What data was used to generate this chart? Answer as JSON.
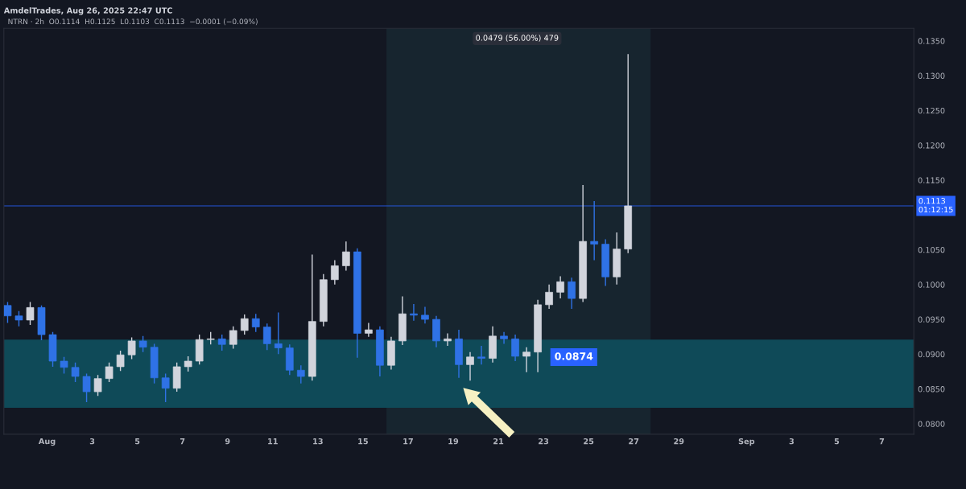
{
  "chart_data": {
    "type": "candlestick",
    "title": "AmdelTrades, Aug 26, 2025 22:47 UTC",
    "subtitle": "NTRN · 2h  O0.1114  H0.1125  L0.1103  C0.1113  −0.0001 (−0.09%)",
    "x": [
      "2025-07-30T06:00",
      "2025-07-30T18:00",
      "2025-07-31T06:00",
      "2025-07-31T18:00",
      "2025-08-01T06:00",
      "2025-08-01T18:00",
      "2025-08-02T06:00",
      "2025-08-02T18:00",
      "2025-08-03T06:00",
      "2025-08-03T18:00",
      "2025-08-04T06:00",
      "2025-08-04T18:00",
      "2025-08-05T06:00",
      "2025-08-05T18:00",
      "2025-08-06T06:00",
      "2025-08-06T18:00",
      "2025-08-07T06:00",
      "2025-08-07T18:00",
      "2025-08-08T06:00",
      "2025-08-08T18:00",
      "2025-08-09T06:00",
      "2025-08-09T18:00",
      "2025-08-10T06:00",
      "2025-08-10T18:00",
      "2025-08-11T06:00",
      "2025-08-11T18:00",
      "2025-08-12T06:00",
      "2025-08-12T18:00",
      "2025-08-13T06:00",
      "2025-08-13T18:00",
      "2025-08-14T06:00",
      "2025-08-14T18:00",
      "2025-08-15T06:00",
      "2025-08-15T18:00",
      "2025-08-16T06:00",
      "2025-08-16T18:00",
      "2025-08-17T06:00",
      "2025-08-17T18:00",
      "2025-08-18T06:00",
      "2025-08-18T18:00",
      "2025-08-19T06:00",
      "2025-08-19T18:00",
      "2025-08-20T06:00",
      "2025-08-20T18:00",
      "2025-08-21T06:00",
      "2025-08-21T18:00",
      "2025-08-22T06:00",
      "2025-08-22T18:00",
      "2025-08-23T06:00",
      "2025-08-23T18:00",
      "2025-08-24T06:00",
      "2025-08-24T18:00",
      "2025-08-25T06:00",
      "2025-08-25T18:00",
      "2025-08-26T06:00",
      "2025-08-26T18:00"
    ],
    "ohlc": [
      [
        0.097,
        0.0975,
        0.0945,
        0.0955
      ],
      [
        0.0955,
        0.0962,
        0.094,
        0.0949
      ],
      [
        0.0949,
        0.0975,
        0.0942,
        0.0967
      ],
      [
        0.0967,
        0.097,
        0.092,
        0.0928
      ],
      [
        0.0928,
        0.0932,
        0.0882,
        0.089
      ],
      [
        0.089,
        0.0896,
        0.0872,
        0.0881
      ],
      [
        0.0881,
        0.0888,
        0.086,
        0.0868
      ],
      [
        0.0868,
        0.0872,
        0.0831,
        0.0846
      ],
      [
        0.0846,
        0.087,
        0.084,
        0.0865
      ],
      [
        0.0865,
        0.0888,
        0.086,
        0.0882
      ],
      [
        0.0882,
        0.0905,
        0.0876,
        0.0899
      ],
      [
        0.0899,
        0.0924,
        0.0893,
        0.0919
      ],
      [
        0.0919,
        0.0926,
        0.0903,
        0.091
      ],
      [
        0.091,
        0.0915,
        0.0858,
        0.0866
      ],
      [
        0.0866,
        0.0872,
        0.0831,
        0.0851
      ],
      [
        0.0851,
        0.0888,
        0.0846,
        0.0882
      ],
      [
        0.0882,
        0.0897,
        0.0875,
        0.089
      ],
      [
        0.089,
        0.0928,
        0.0885,
        0.0921
      ],
      [
        0.0921,
        0.0932,
        0.0914,
        0.0922
      ],
      [
        0.0922,
        0.0928,
        0.0905,
        0.0914
      ],
      [
        0.0914,
        0.094,
        0.0908,
        0.0934
      ],
      [
        0.0934,
        0.0957,
        0.0928,
        0.0951
      ],
      [
        0.0951,
        0.0958,
        0.0932,
        0.0939
      ],
      [
        0.0939,
        0.0944,
        0.0906,
        0.0915
      ],
      [
        0.0915,
        0.096,
        0.09,
        0.0909
      ],
      [
        0.0909,
        0.0914,
        0.087,
        0.0877
      ],
      [
        0.0877,
        0.0884,
        0.0858,
        0.0868
      ],
      [
        0.0868,
        0.1043,
        0.0862,
        0.0947
      ],
      [
        0.0947,
        0.1015,
        0.094,
        0.1007
      ],
      [
        0.1007,
        0.1035,
        0.1,
        0.1027
      ],
      [
        0.1027,
        0.1062,
        0.102,
        0.1047
      ],
      [
        0.1047,
        0.1052,
        0.0895,
        0.093
      ],
      [
        0.093,
        0.0945,
        0.0925,
        0.0935
      ],
      [
        0.0935,
        0.094,
        0.0868,
        0.0884
      ],
      [
        0.0884,
        0.0925,
        0.0878,
        0.0919
      ],
      [
        0.0919,
        0.0983,
        0.0913,
        0.0958
      ],
      [
        0.0958,
        0.0972,
        0.0948,
        0.0956
      ],
      [
        0.0956,
        0.0968,
        0.0944,
        0.095
      ],
      [
        0.095,
        0.0955,
        0.091,
        0.0919
      ],
      [
        0.0919,
        0.093,
        0.0912,
        0.0922
      ],
      [
        0.0922,
        0.0935,
        0.0866,
        0.0885
      ],
      [
        0.0885,
        0.0903,
        0.0862,
        0.0896
      ],
      [
        0.0896,
        0.0912,
        0.0885,
        0.0894
      ],
      [
        0.0894,
        0.094,
        0.0888,
        0.0926
      ],
      [
        0.0926,
        0.0932,
        0.0915,
        0.0922
      ],
      [
        0.0922,
        0.0928,
        0.089,
        0.0897
      ],
      [
        0.0897,
        0.091,
        0.0874,
        0.0903
      ],
      [
        0.0903,
        0.0978,
        0.0874,
        0.0971
      ],
      [
        0.0971,
        0.1,
        0.0965,
        0.0989
      ],
      [
        0.0989,
        0.1012,
        0.098,
        0.1004
      ],
      [
        0.1004,
        0.101,
        0.0965,
        0.098
      ],
      [
        0.098,
        0.1143,
        0.0975,
        0.1062
      ],
      [
        0.1062,
        0.112,
        0.1035,
        0.1058
      ],
      [
        0.1058,
        0.1065,
        0.0998,
        0.1011
      ],
      [
        0.1011,
        0.1075,
        0.1,
        0.1051
      ],
      [
        0.1051,
        0.1331,
        0.1045,
        0.1113
      ]
    ],
    "colors": [
      "#2f72e6",
      "#2f72e6",
      "#d1d4dc",
      "#2f72e6",
      "#2f72e6",
      "#2f72e6",
      "#2f72e6",
      "#2f72e6",
      "#d1d4dc",
      "#d1d4dc",
      "#d1d4dc",
      "#d1d4dc",
      "#2f72e6",
      "#2f72e6",
      "#2f72e6",
      "#d1d4dc",
      "#d1d4dc",
      "#d1d4dc",
      "#d1d4dc",
      "#2f72e6",
      "#d1d4dc",
      "#d1d4dc",
      "#2f72e6",
      "#2f72e6",
      "#2f72e6",
      "#2f72e6",
      "#2f72e6",
      "#d1d4dc",
      "#d1d4dc",
      "#d1d4dc",
      "#d1d4dc",
      "#2f72e6",
      "#d1d4dc",
      "#2f72e6",
      "#d1d4dc",
      "#d1d4dc",
      "#2f72e6",
      "#2f72e6",
      "#2f72e6",
      "#d1d4dc",
      "#2f72e6",
      "#d1d4dc",
      "#2f72e6",
      "#d1d4dc",
      "#2f72e6",
      "#2f72e6",
      "#d1d4dc",
      "#d1d4dc",
      "#d1d4dc",
      "#d1d4dc",
      "#2f72e6",
      "#d1d4dc",
      "#2f72e6",
      "#2f72e6",
      "#d1d4dc",
      "#d1d4dc"
    ],
    "xlim": [
      "2025-07-30T02:00",
      "2025-09-08T10:00"
    ],
    "xticks": [
      {
        "value": "2025-08-01",
        "label": "Aug"
      },
      {
        "value": "2025-08-03",
        "label": "3"
      },
      {
        "value": "2025-08-05",
        "label": "5"
      },
      {
        "value": "2025-08-07",
        "label": "7"
      },
      {
        "value": "2025-08-09",
        "label": "9"
      },
      {
        "value": "2025-08-11",
        "label": "11"
      },
      {
        "value": "2025-08-13",
        "label": "13"
      },
      {
        "value": "2025-08-15",
        "label": "15"
      },
      {
        "value": "2025-08-17",
        "label": "17"
      },
      {
        "value": "2025-08-19",
        "label": "19"
      },
      {
        "value": "2025-08-21",
        "label": "21"
      },
      {
        "value": "2025-08-23",
        "label": "23"
      },
      {
        "value": "2025-08-25",
        "label": "25"
      },
      {
        "value": "2025-08-27",
        "label": "27"
      },
      {
        "value": "2025-08-29",
        "label": "29"
      },
      {
        "value": "2025-09-01",
        "label": "Sep"
      },
      {
        "value": "2025-09-03",
        "label": "3"
      },
      {
        "value": "2025-09-05",
        "label": "5"
      },
      {
        "value": "2025-09-07",
        "label": "7"
      }
    ],
    "ylim": [
      0.0785,
      0.1368
    ],
    "yticks": [
      {
        "value": 0.08,
        "label": "0.0800"
      },
      {
        "value": 0.085,
        "label": "0.0850"
      },
      {
        "value": 0.09,
        "label": "0.0900"
      },
      {
        "value": 0.095,
        "label": "0.0950"
      },
      {
        "value": 0.1,
        "label": "0.1000"
      },
      {
        "value": 0.105,
        "label": "0.1050"
      },
      {
        "value": 0.115,
        "label": "0.1150"
      },
      {
        "value": 0.12,
        "label": "0.1200"
      },
      {
        "value": 0.125,
        "label": "0.1250"
      },
      {
        "value": 0.13,
        "label": "0.1300"
      },
      {
        "value": 0.135,
        "label": "0.1350"
      }
    ],
    "bands": [
      {
        "axis": "y",
        "from": 0.0823,
        "to": 0.0921,
        "color": "#0f4a58"
      },
      {
        "axis": "x",
        "from": "2025-08-16T01:00",
        "to": "2025-08-27T18:00",
        "color": "#17252f"
      }
    ],
    "ref_lines": [
      {
        "axis": "y",
        "value": 0.1113,
        "label": "0.1113\n01:12:15",
        "color": "#2962ff"
      }
    ],
    "annotations": [
      "0.0479 (56.00%) 479",
      "0.0874"
    ],
    "grid": false,
    "legend": false
  }
}
